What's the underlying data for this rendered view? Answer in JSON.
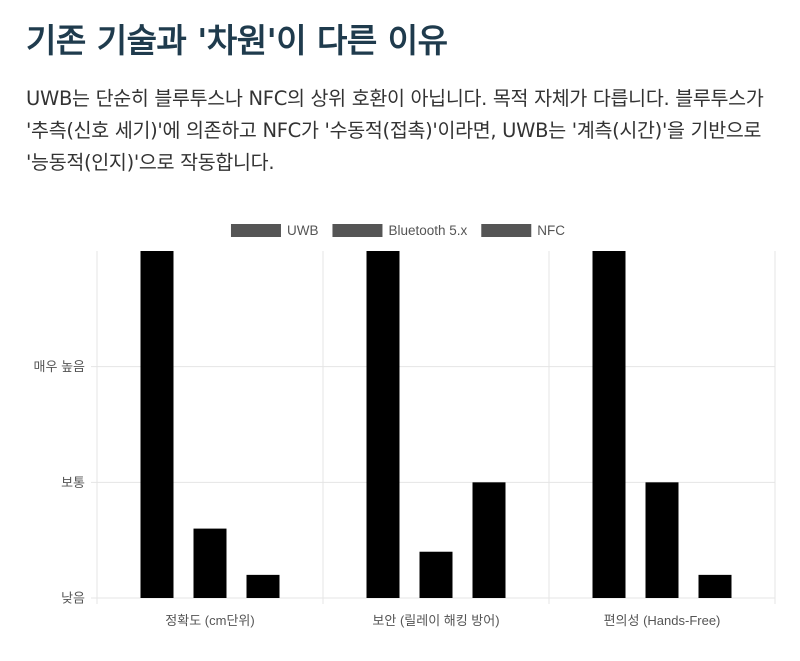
{
  "header": {
    "title": "기존 기술과 '차원'이 다른 이유",
    "description": "UWB는 단순히 블루투스나 NFC의 상위 호환이 아닙니다. 목적 자체가 다릅니다. 블루투스가 '추측(신호 세기)'에 의존하고 NFC가 '수동적(접촉)'이라면, UWB는 '계측(시간)'을 기반으로 '능동적(인지)'으로 작동합니다."
  },
  "colors": {
    "bar_fill": "#000000",
    "legend_swatch": "#555555",
    "grid": "#e5e5e5",
    "title": "#1f3b4d"
  },
  "chart_data": {
    "type": "bar",
    "categories": [
      "정확도 (cm단위)",
      "보안 (릴레이 해킹 방어)",
      "편의성 (Hands-Free)"
    ],
    "series": [
      {
        "name": "UWB",
        "values": [
          3,
          3,
          3
        ]
      },
      {
        "name": "Bluetooth 5.x",
        "values": [
          0.6,
          0.4,
          1
        ]
      },
      {
        "name": "NFC",
        "values": [
          0.2,
          1,
          0.2
        ]
      }
    ],
    "y_ticks": [
      {
        "value": 0,
        "label": "낮음"
      },
      {
        "value": 1,
        "label": "보통"
      },
      {
        "value": 2,
        "label": "매우 높음"
      }
    ],
    "ylim": [
      0,
      3
    ],
    "legend_position": "top",
    "grid": true
  }
}
